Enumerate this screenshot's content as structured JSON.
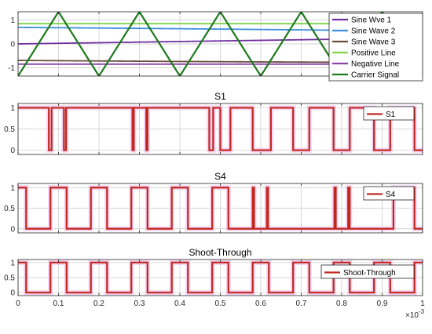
{
  "chart_data": [
    {
      "type": "line",
      "title": "",
      "xlim": [
        0,
        0.001
      ],
      "ylim": [
        -1.35,
        1.35
      ],
      "yticks": [
        "1",
        "0",
        "-1"
      ],
      "yticks_values": [
        1,
        0,
        -1
      ],
      "show_xtick_labels": false,
      "grid": true,
      "legend_position": "top-right",
      "series": [
        {
          "name": "Sine Wve 1",
          "color": "#7030a0",
          "kind": "sine",
          "amplitude": 0.8,
          "frequency_hz": 50,
          "phase_deg": 0
        },
        {
          "name": "Sine Wave 2",
          "color": "#3d8fe0",
          "kind": "sine",
          "amplitude": 0.8,
          "frequency_hz": 50,
          "phase_deg": 120
        },
        {
          "name": "Sine Wave 3",
          "color": "#6b4f3e",
          "kind": "sine",
          "amplitude": 0.8,
          "frequency_hz": 50,
          "phase_deg": 240
        },
        {
          "name": "Positive Line",
          "color": "#7fd34a",
          "kind": "constant",
          "value": 0.85
        },
        {
          "name": "Negative Line",
          "color": "#8e44ad",
          "kind": "constant",
          "value": -0.85
        },
        {
          "name": "Carrier Signal",
          "color": "#1e7b1e",
          "kind": "triangle",
          "period": 0.0002,
          "first_peak": 0.0001,
          "min": -1.35,
          "max": 1.35
        }
      ]
    },
    {
      "type": "line",
      "title": "S1",
      "xlim": [
        0,
        0.001
      ],
      "ylim": [
        -0.1,
        1.1
      ],
      "yticks": [
        "1",
        "0.5",
        "0"
      ],
      "yticks_values": [
        1,
        0.5,
        0
      ],
      "show_xtick_labels": false,
      "grid": true,
      "legend_position": "top-right",
      "series": [
        {
          "name": "S1",
          "color": "#c0281e",
          "kind": "step",
          "x": [
            0,
            0.0761,
            0.0761,
            0.0829,
            0.0829,
            0.1134,
            0.1134,
            0.1187,
            0.1187,
            0.2828,
            0.2828,
            0.2862,
            0.2862,
            0.317,
            0.317,
            0.3201,
            0.3201,
            0.4727,
            0.4727,
            0.4823,
            0.4823,
            0.5,
            0.5,
            0.525,
            0.525,
            0.58,
            0.58,
            0.625,
            0.625,
            0.68,
            0.68,
            0.72,
            0.72,
            0.78,
            0.78,
            0.82,
            0.82,
            0.88,
            0.88,
            0.92,
            0.92,
            0.98,
            0.98,
            1.0
          ],
          "y": [
            1,
            1,
            0,
            0,
            1,
            1,
            0,
            0,
            1,
            1,
            0,
            0,
            1,
            1,
            0,
            0,
            1,
            1,
            0,
            0,
            1,
            1,
            0,
            0,
            1,
            1,
            0,
            0,
            1,
            1,
            0,
            0,
            1,
            1,
            0,
            0,
            1,
            1,
            0,
            0,
            1,
            1,
            0,
            0
          ],
          "x_scale": 0.001
        }
      ]
    },
    {
      "type": "line",
      "title": "S4",
      "xlim": [
        0,
        0.001
      ],
      "ylim": [
        -0.1,
        1.1
      ],
      "yticks": [
        "1",
        "0.5",
        "0"
      ],
      "yticks_values": [
        1,
        0.5,
        0
      ],
      "show_xtick_labels": false,
      "grid": true,
      "legend_position": "top-right",
      "series": [
        {
          "name": "S4",
          "color": "#c0281e",
          "kind": "step",
          "x": [
            0,
            0.02,
            0.02,
            0.08,
            0.08,
            0.12,
            0.12,
            0.18,
            0.18,
            0.22,
            0.22,
            0.28,
            0.28,
            0.32,
            0.32,
            0.38,
            0.38,
            0.42,
            0.42,
            0.48,
            0.48,
            0.52,
            0.52,
            0.58,
            0.58,
            0.5835,
            0.5835,
            0.615,
            0.615,
            0.618,
            0.618,
            0.782,
            0.782,
            0.7855,
            0.7855,
            0.816,
            0.816,
            0.82,
            0.82,
            0.928,
            0.928,
            0.98,
            0.98,
            1.0
          ],
          "y": [
            1,
            1,
            0,
            0,
            1,
            1,
            0,
            0,
            1,
            1,
            0,
            0,
            1,
            1,
            0,
            0,
            1,
            1,
            0,
            0,
            1,
            1,
            0,
            0,
            1,
            1,
            0,
            0,
            1,
            1,
            0,
            0,
            1,
            1,
            0,
            0,
            1,
            1,
            0,
            0,
            1,
            1,
            0,
            0
          ],
          "x_scale": 0.001
        }
      ]
    },
    {
      "type": "line",
      "title": "Shoot-Through",
      "xlim": [
        0,
        0.001
      ],
      "ylim": [
        -0.1,
        1.1
      ],
      "yticks": [
        "1",
        "0.5",
        "0"
      ],
      "yticks_values": [
        1,
        0.5,
        0
      ],
      "xticks": [
        "0",
        "0.1",
        "0.2",
        "0.3",
        "0.4",
        "0.5",
        "0.6",
        "0.7",
        "0.8",
        "0.9",
        "1"
      ],
      "xticks_values": [
        0,
        0.1,
        0.2,
        0.3,
        0.4,
        0.5,
        0.6,
        0.7,
        0.8,
        0.9,
        1.0
      ],
      "x_exponent_label": "×10",
      "x_exponent_power": "-3",
      "show_xtick_labels": true,
      "grid": true,
      "legend_position": "top-right",
      "series": [
        {
          "name": "Shoot-Through",
          "color": "#c0281e",
          "kind": "step",
          "x": [
            0,
            0.02,
            0.02,
            0.08,
            0.08,
            0.12,
            0.12,
            0.18,
            0.18,
            0.22,
            0.22,
            0.28,
            0.28,
            0.32,
            0.32,
            0.38,
            0.38,
            0.42,
            0.42,
            0.48,
            0.48,
            0.52,
            0.52,
            0.58,
            0.58,
            0.62,
            0.62,
            0.68,
            0.68,
            0.72,
            0.72,
            0.78,
            0.78,
            0.82,
            0.82,
            0.88,
            0.88,
            0.92,
            0.92,
            0.98,
            0.98,
            1.0
          ],
          "y": [
            1,
            1,
            0,
            0,
            1,
            1,
            0,
            0,
            1,
            1,
            0,
            0,
            1,
            1,
            0,
            0,
            1,
            1,
            0,
            0,
            1,
            1,
            0,
            0,
            1,
            1,
            0,
            0,
            1,
            1,
            0,
            0,
            1,
            1,
            0,
            0,
            1,
            1,
            0,
            0,
            1,
            1
          ],
          "x_scale": 0.001
        }
      ]
    }
  ],
  "style": {
    "glow_color": "#f3c6ee",
    "grid_color": "#c8c8c8",
    "axes_color": "#262626"
  }
}
